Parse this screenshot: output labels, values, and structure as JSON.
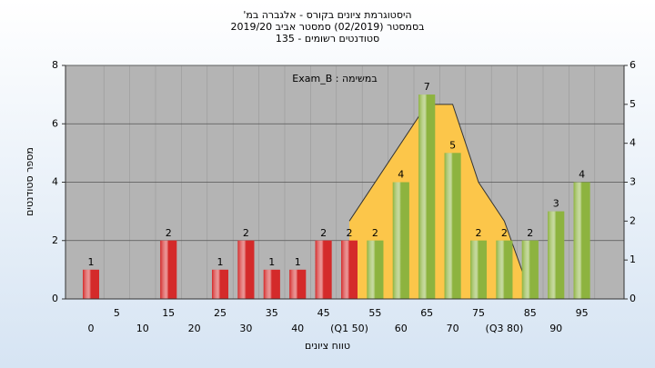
{
  "chart_data": {
    "type": "bar",
    "title": "היסטוגרמת ציונים בקורס - אלגברה במ'",
    "subtitle": "בסמסטר (02/2019) סמסטר אביב 2019/20",
    "subtitle2": "סטודנטים רשומים - 135",
    "annotation": "Exam_B : במשימה",
    "x_label": "טווח ציונים",
    "y_label": "מספר סטודנטים",
    "categories": [
      "0",
      "5",
      "10",
      "15",
      "20",
      "25",
      "30",
      "35",
      "40",
      "45",
      "(Q1 50)",
      "55",
      "60",
      "65",
      "70",
      "75",
      "(Q3 80)",
      "85",
      "90",
      "95"
    ],
    "values": [
      1,
      0,
      0,
      2,
      0,
      1,
      2,
      1,
      1,
      2,
      2,
      2,
      4,
      7,
      5,
      2,
      2,
      2,
      3,
      4
    ],
    "colors": [
      "#d42a2a",
      "#d42a2a",
      "#d42a2a",
      "#d42a2a",
      "#d42a2a",
      "#d42a2a",
      "#d42a2a",
      "#d42a2a",
      "#d42a2a",
      "#d42a2a",
      "#d42a2a",
      "#8db33f",
      "#8db33f",
      "#8db33f",
      "#8db33f",
      "#8db33f",
      "#8db33f",
      "#8db33f",
      "#8db33f",
      "#8db33f"
    ],
    "area": {
      "x": [
        50,
        65,
        70,
        75,
        80,
        83.5
      ],
      "values": [
        2,
        5,
        5,
        3,
        2,
        0.7
      ],
      "color": "#fcc64a",
      "axis": "y2"
    },
    "ylim": [
      0,
      8
    ],
    "yticks": [
      0,
      2,
      4,
      6,
      8
    ],
    "y2lim": [
      0,
      6
    ],
    "y2ticks": [
      0,
      1,
      2,
      3,
      4,
      5,
      6
    ],
    "grid": true
  }
}
